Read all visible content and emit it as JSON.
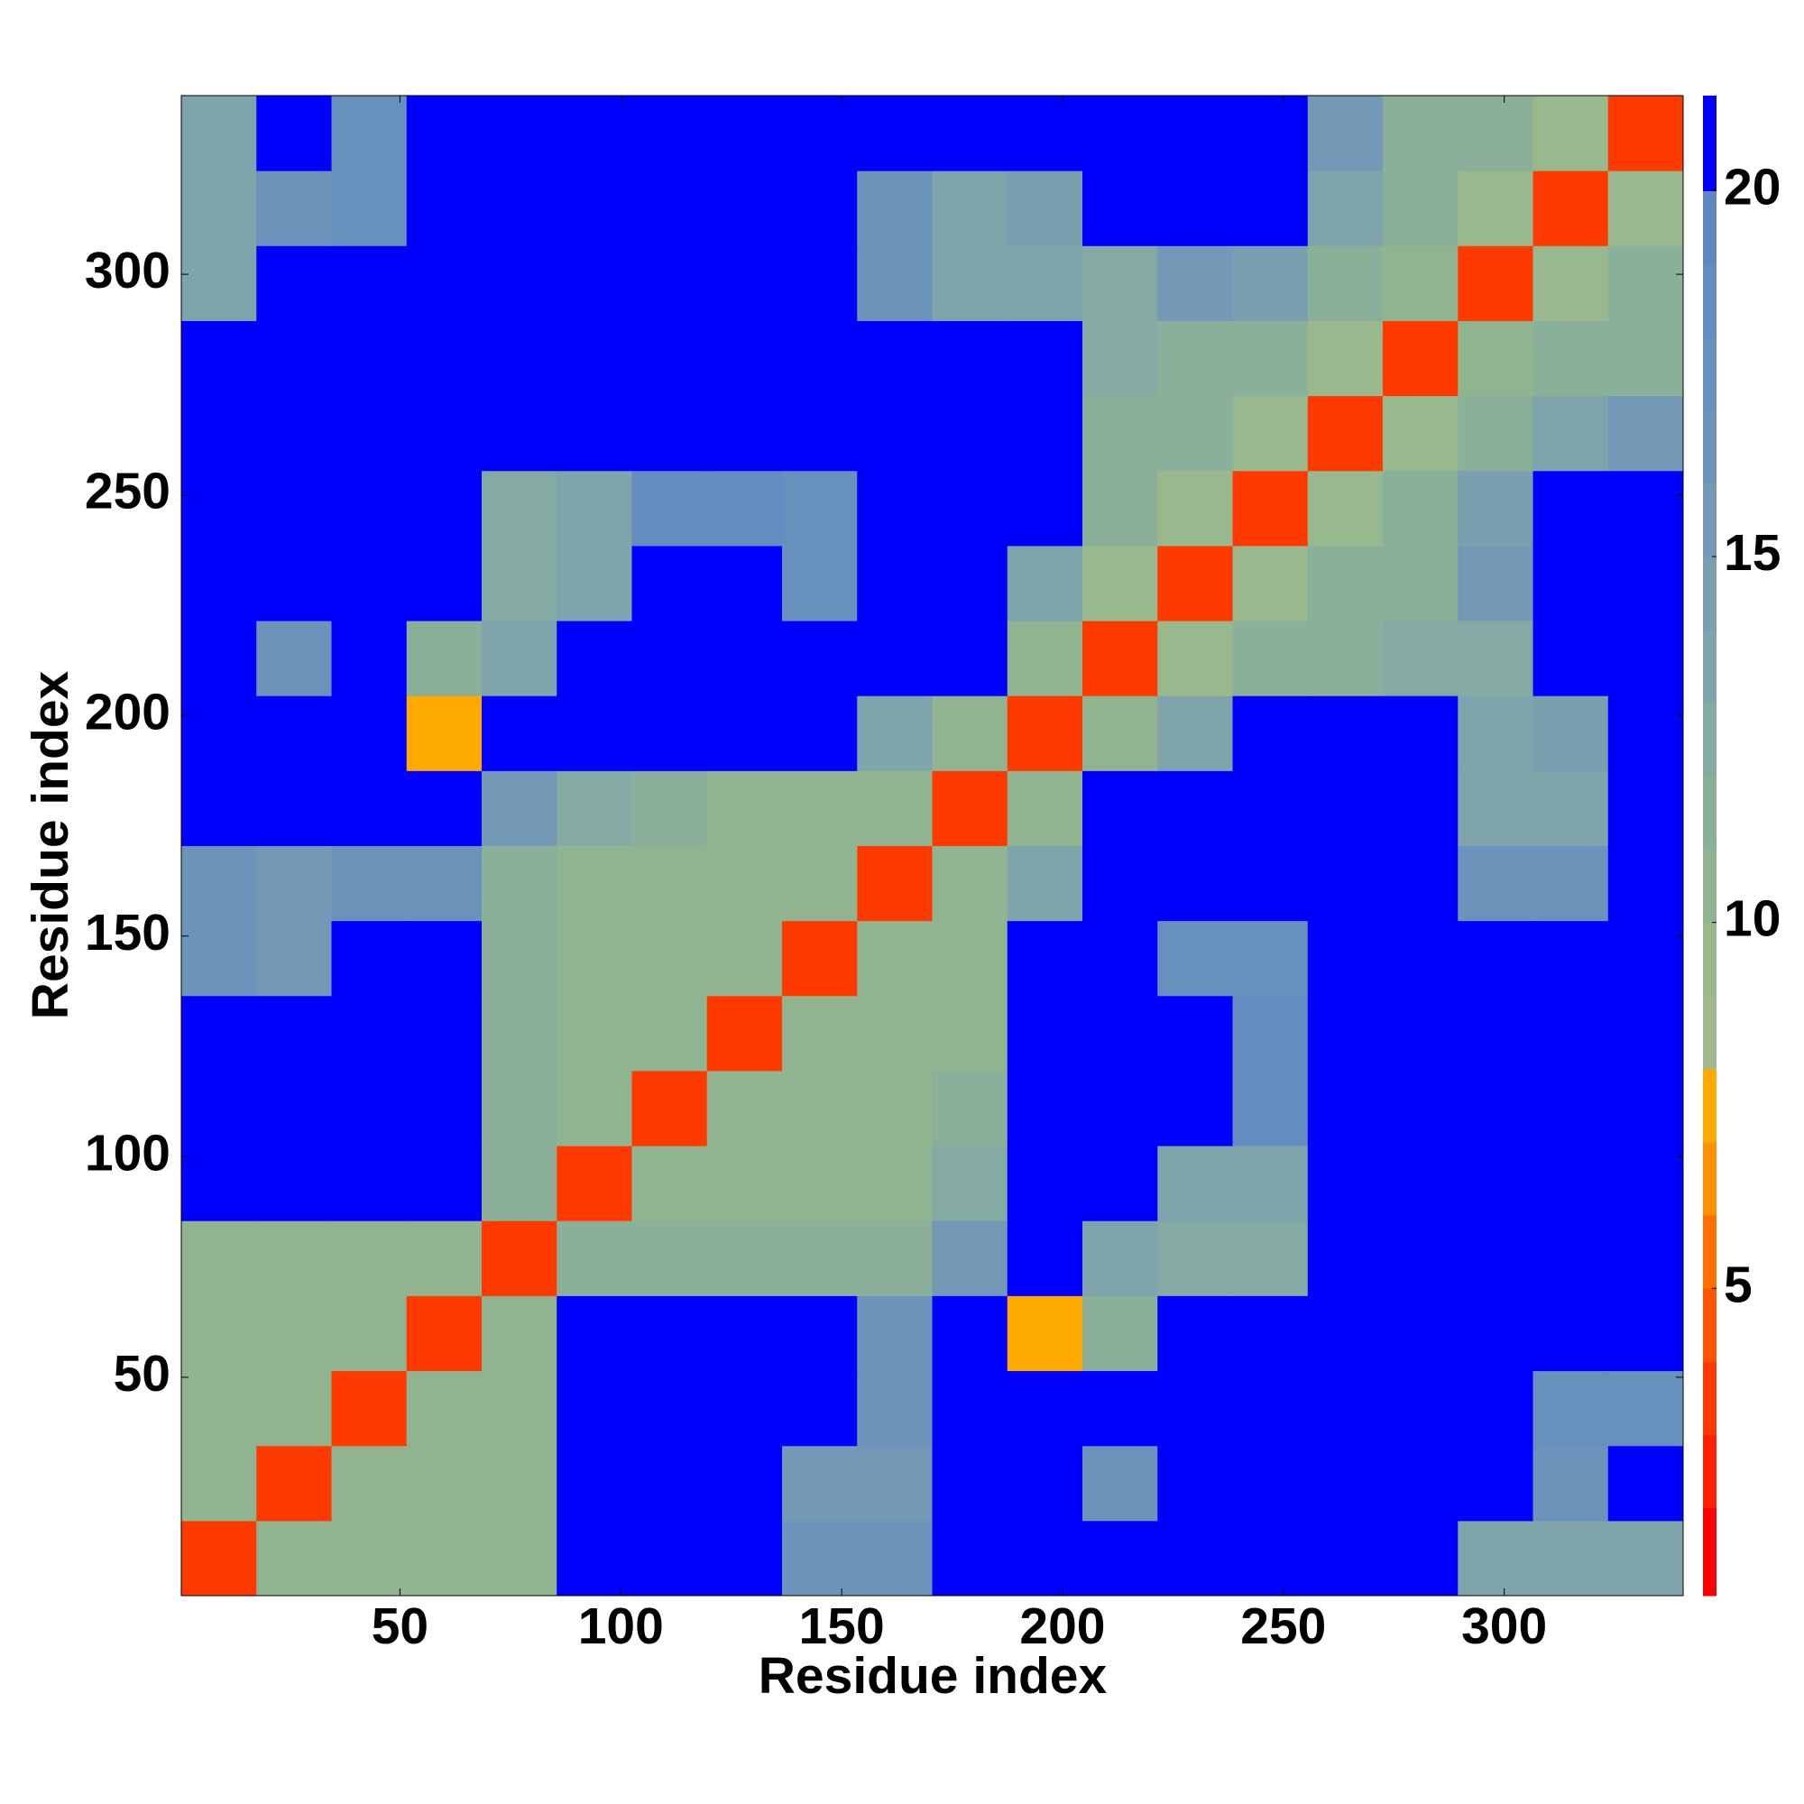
{
  "chart_data": {
    "type": "heatmap",
    "xlabel": "Residue index",
    "ylabel": "Residue index",
    "xlim": [
      0.5,
      340.5
    ],
    "ylim": [
      0.5,
      340.5
    ],
    "xticks": [
      50,
      100,
      150,
      200,
      250,
      300
    ],
    "yticks": [
      50,
      100,
      150,
      200,
      250,
      300
    ],
    "x": [
      9,
      26,
      43,
      60,
      77,
      94,
      111,
      128,
      145,
      162,
      179,
      196,
      213,
      230,
      247,
      264,
      281,
      298,
      315,
      332
    ],
    "y": [
      9,
      26,
      43,
      60,
      77,
      94,
      111,
      128,
      145,
      162,
      179,
      196,
      213,
      230,
      247,
      264,
      281,
      298,
      315,
      332
    ],
    "values": [
      [
        4,
        11,
        11,
        11,
        11,
        22,
        22,
        22,
        17,
        17,
        22,
        22,
        22,
        22,
        22,
        22,
        22,
        14,
        14,
        14
      ],
      [
        11,
        4,
        11,
        11,
        11,
        22,
        22,
        22,
        16,
        16,
        22,
        22,
        17,
        22,
        22,
        22,
        22,
        22,
        17,
        22
      ],
      [
        11,
        11,
        4,
        11,
        11,
        22,
        22,
        22,
        22,
        17,
        22,
        22,
        22,
        22,
        22,
        22,
        22,
        22,
        18,
        18
      ],
      [
        11,
        11,
        11,
        4,
        11,
        22,
        22,
        22,
        22,
        17,
        22,
        8,
        12,
        22,
        22,
        22,
        22,
        22,
        22,
        22
      ],
      [
        11,
        11,
        11,
        11,
        4,
        12,
        12,
        12,
        12,
        12,
        16,
        22,
        14,
        13,
        13,
        22,
        22,
        22,
        22,
        22
      ],
      [
        22,
        22,
        22,
        22,
        12,
        4,
        11,
        11,
        11,
        11,
        13,
        22,
        22,
        14,
        14,
        22,
        22,
        22,
        22,
        22
      ],
      [
        22,
        22,
        22,
        22,
        12,
        11,
        4,
        11,
        11,
        11,
        12,
        22,
        22,
        22,
        19,
        22,
        22,
        22,
        22,
        22
      ],
      [
        22,
        22,
        22,
        22,
        12,
        11,
        11,
        4,
        11,
        11,
        11,
        22,
        22,
        22,
        19,
        22,
        22,
        22,
        22,
        22
      ],
      [
        17,
        16,
        22,
        22,
        12,
        11,
        11,
        11,
        4,
        11,
        11,
        22,
        22,
        18,
        18,
        22,
        22,
        22,
        22,
        22
      ],
      [
        17,
        16,
        17,
        17,
        12,
        11,
        11,
        11,
        11,
        4,
        11,
        14,
        22,
        22,
        22,
        22,
        22,
        17,
        17,
        22
      ],
      [
        22,
        22,
        22,
        22,
        16,
        13,
        12,
        11,
        11,
        11,
        4,
        11,
        22,
        22,
        22,
        22,
        22,
        14,
        14,
        22
      ],
      [
        22,
        22,
        22,
        8,
        22,
        22,
        22,
        22,
        22,
        14,
        11,
        4,
        11,
        14,
        22,
        22,
        22,
        14,
        15,
        22
      ],
      [
        22,
        17,
        22,
        12,
        14,
        22,
        22,
        22,
        22,
        22,
        22,
        11,
        4,
        10,
        12,
        12,
        13,
        13,
        22,
        22
      ],
      [
        22,
        22,
        22,
        22,
        13,
        14,
        22,
        22,
        18,
        22,
        22,
        14,
        10,
        4,
        10,
        12,
        12,
        16,
        22,
        22
      ],
      [
        22,
        22,
        22,
        22,
        13,
        14,
        19,
        19,
        18,
        22,
        22,
        22,
        12,
        10,
        4,
        10,
        12,
        15,
        22,
        22
      ],
      [
        22,
        22,
        22,
        22,
        22,
        22,
        22,
        22,
        22,
        22,
        22,
        22,
        12,
        12,
        10,
        4,
        10,
        12,
        14,
        16
      ],
      [
        22,
        22,
        22,
        22,
        22,
        22,
        22,
        22,
        22,
        22,
        22,
        22,
        13,
        12,
        12,
        10,
        4,
        11,
        12,
        12
      ],
      [
        14,
        22,
        22,
        22,
        22,
        22,
        22,
        22,
        22,
        17,
        14,
        14,
        13,
        16,
        15,
        12,
        11,
        4,
        10,
        12
      ],
      [
        14,
        17,
        18,
        22,
        22,
        22,
        22,
        22,
        22,
        17,
        14,
        15,
        22,
        22,
        22,
        14,
        12,
        10,
        4,
        10
      ],
      [
        14,
        22,
        18,
        22,
        22,
        22,
        22,
        22,
        22,
        22,
        22,
        22,
        22,
        22,
        22,
        16,
        12,
        12,
        10,
        4
      ]
    ],
    "colorbar_lim": [
      0.8,
      21.3
    ],
    "colorbar_ticks": [
      5,
      10,
      15,
      20
    ],
    "colorscale": [
      {
        "value": 2,
        "color": "#ff0000"
      },
      {
        "value": 3,
        "color": "#ff2200"
      },
      {
        "value": 4,
        "color": "#ff3a00"
      },
      {
        "value": 5,
        "color": "#ff5500"
      },
      {
        "value": 6,
        "color": "#ff7000"
      },
      {
        "value": 7,
        "color": "#ff9000"
      },
      {
        "value": 8,
        "color": "#ffaa00"
      },
      {
        "value": 9,
        "color": "#a0b890"
      },
      {
        "value": 10,
        "color": "#98b88e"
      },
      {
        "value": 11,
        "color": "#90b490"
      },
      {
        "value": 12,
        "color": "#8ab09a"
      },
      {
        "value": 13,
        "color": "#85aaa4"
      },
      {
        "value": 14,
        "color": "#80a4ac"
      },
      {
        "value": 15,
        "color": "#7aa0b0"
      },
      {
        "value": 16,
        "color": "#7399b6"
      },
      {
        "value": 17,
        "color": "#6c94ba"
      },
      {
        "value": 18,
        "color": "#6890bc"
      },
      {
        "value": 19,
        "color": "#648cc0"
      },
      {
        "value": 20,
        "color": "#5f88c3"
      },
      {
        "value": 21.3,
        "color": "#0000ff"
      }
    ]
  }
}
